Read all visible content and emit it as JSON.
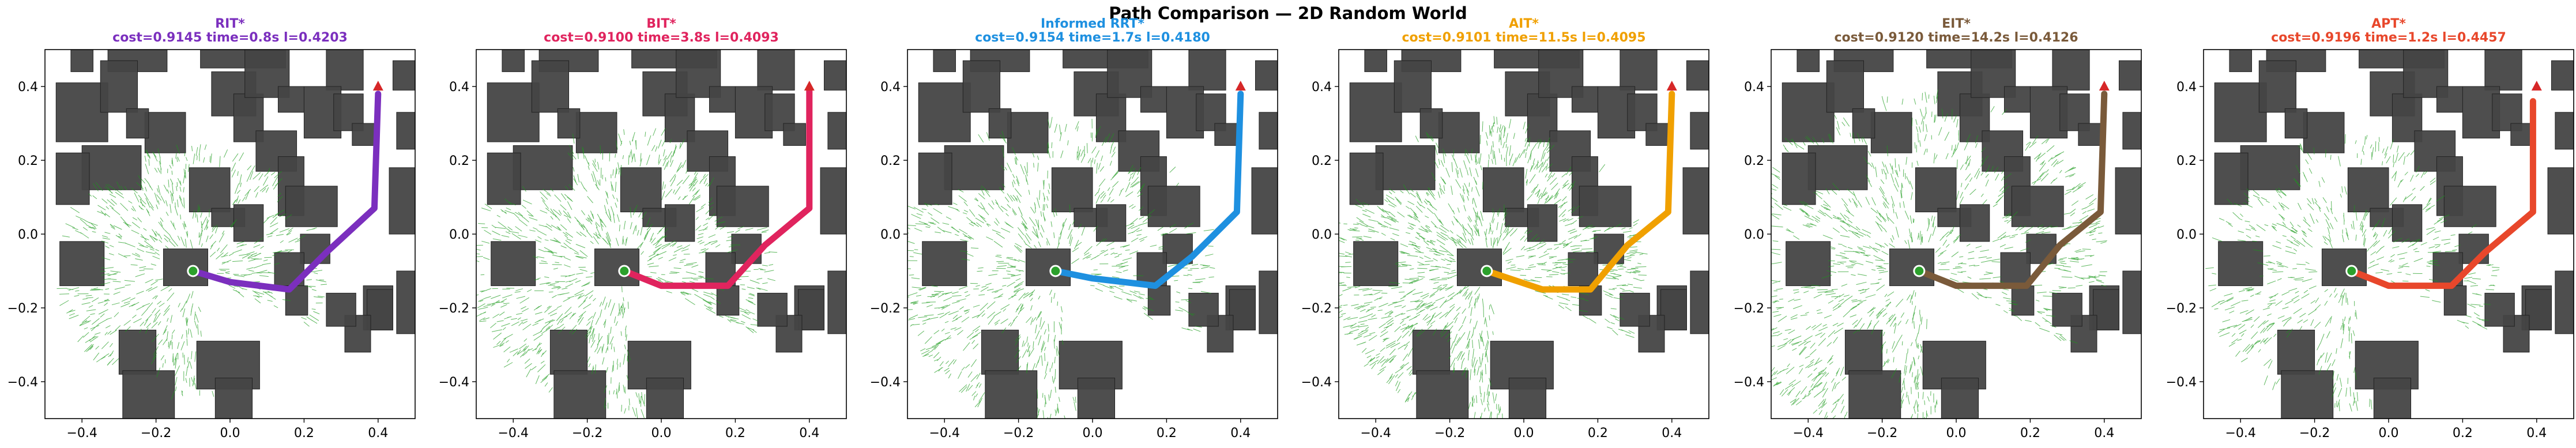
{
  "figure": {
    "title": "Path Comparison — 2D Random World"
  },
  "colors": {
    "tree": "#1a9a1a",
    "obstacle": "#454545",
    "start": "#2ca02c",
    "goal": "#d62728"
  },
  "chart_data": [
    {
      "type": "line",
      "planner": "RIT*",
      "title_name": "RIT*",
      "title_stats": "cost=0.9145  time=0.8s  l=0.4203",
      "color": "#7b2fbe",
      "xlim": [
        -0.5,
        0.5
      ],
      "ylim": [
        -0.5,
        0.5
      ],
      "xticks": [
        "−0.4",
        "−0.2",
        "0.0",
        "0.2",
        "0.4"
      ],
      "yticks": [
        "0.4",
        "0.2",
        "0.0",
        "−0.2",
        "−0.4"
      ],
      "start": [
        -0.1,
        -0.1
      ],
      "goal": [
        0.4,
        0.4
      ],
      "tree_density": 0.55,
      "tree_extent": 0.35,
      "path": [
        [
          -0.1,
          -0.1
        ],
        [
          0.0,
          -0.13
        ],
        [
          0.16,
          -0.15
        ],
        [
          0.26,
          -0.05
        ],
        [
          0.39,
          0.07
        ],
        [
          0.4,
          0.38
        ]
      ]
    },
    {
      "type": "line",
      "planner": "BIT*",
      "title_name": "BIT*",
      "title_stats": "cost=0.9100  time=3.8s  l=0.4093",
      "color": "#e0245e",
      "xlim": [
        -0.5,
        0.5
      ],
      "ylim": [
        -0.5,
        0.5
      ],
      "xticks": [
        "−0.4",
        "−0.2",
        "0.0",
        "0.2",
        "0.4"
      ],
      "yticks": [
        "0.4",
        "0.2",
        "0.0",
        "−0.2",
        "−0.4"
      ],
      "start": [
        -0.1,
        -0.1
      ],
      "goal": [
        0.4,
        0.4
      ],
      "tree_density": 0.75,
      "tree_extent": 0.4,
      "path": [
        [
          -0.1,
          -0.1
        ],
        [
          0.0,
          -0.14
        ],
        [
          0.18,
          -0.14
        ],
        [
          0.28,
          -0.03
        ],
        [
          0.4,
          0.07
        ],
        [
          0.4,
          0.39
        ]
      ]
    },
    {
      "type": "line",
      "planner": "Informed RRT*",
      "title_name": "Informed RRT*",
      "title_stats": "cost=0.9154  time=1.7s  l=0.4180",
      "color": "#1e90e0",
      "xlim": [
        -0.5,
        0.5
      ],
      "ylim": [
        -0.5,
        0.5
      ],
      "xticks": [
        "−0.4",
        "−0.2",
        "0.0",
        "0.2",
        "0.4"
      ],
      "yticks": [
        "0.4",
        "0.2",
        "0.0",
        "−0.2",
        "−0.4"
      ],
      "start": [
        -0.1,
        -0.1
      ],
      "goal": [
        0.4,
        0.4
      ],
      "tree_density": 0.7,
      "tree_extent": 0.42,
      "path": [
        [
          -0.1,
          -0.1
        ],
        [
          0.0,
          -0.12
        ],
        [
          0.17,
          -0.14
        ],
        [
          0.27,
          -0.06
        ],
        [
          0.39,
          0.06
        ],
        [
          0.4,
          0.38
        ]
      ]
    },
    {
      "type": "line",
      "planner": "AIT*",
      "title_name": "AIT*",
      "title_stats": "cost=0.9101  time=11.5s  l=0.4095",
      "color": "#f0a000",
      "xlim": [
        -0.5,
        0.5
      ],
      "ylim": [
        -0.5,
        0.5
      ],
      "xticks": [
        "−0.4",
        "−0.2",
        "0.0",
        "0.2",
        "0.4"
      ],
      "yticks": [
        "0.4",
        "0.2",
        "0.0",
        "−0.2",
        "−0.4"
      ],
      "start": [
        -0.1,
        -0.1
      ],
      "goal": [
        0.4,
        0.4
      ],
      "tree_density": 1.0,
      "tree_extent": 0.42,
      "path": [
        [
          -0.1,
          -0.1
        ],
        [
          0.05,
          -0.15
        ],
        [
          0.18,
          -0.15
        ],
        [
          0.28,
          -0.03
        ],
        [
          0.39,
          0.06
        ],
        [
          0.4,
          0.38
        ]
      ]
    },
    {
      "type": "line",
      "planner": "EIT*",
      "title_name": "EIT*",
      "title_stats": "cost=0.9120  time=14.2s  l=0.4126",
      "color": "#7a5a3a",
      "xlim": [
        -0.5,
        0.5
      ],
      "ylim": [
        -0.5,
        0.5
      ],
      "xticks": [
        "−0.4",
        "−0.2",
        "0.0",
        "0.2",
        "0.4"
      ],
      "yticks": [
        "0.4",
        "0.2",
        "0.0",
        "−0.2",
        "−0.4"
      ],
      "start": [
        -0.1,
        -0.1
      ],
      "goal": [
        0.4,
        0.4
      ],
      "tree_density": 1.0,
      "tree_extent": 0.5,
      "path": [
        [
          -0.1,
          -0.1
        ],
        [
          0.0,
          -0.14
        ],
        [
          0.19,
          -0.14
        ],
        [
          0.28,
          -0.03
        ],
        [
          0.39,
          0.06
        ],
        [
          0.4,
          0.38
        ]
      ]
    },
    {
      "type": "line",
      "planner": "APT*",
      "title_name": "APT*",
      "title_stats": "cost=0.9196  time=1.2s  l=0.4457",
      "color": "#e8472b",
      "xlim": [
        -0.5,
        0.5
      ],
      "ylim": [
        -0.5,
        0.5
      ],
      "xticks": [
        "−0.4",
        "−0.2",
        "0.0",
        "0.2",
        "0.4"
      ],
      "yticks": [
        "0.4",
        "0.2",
        "0.0",
        "−0.2",
        "−0.4"
      ],
      "start": [
        -0.1,
        -0.1
      ],
      "goal": [
        0.4,
        0.4
      ],
      "tree_density": 0.45,
      "tree_extent": 0.38,
      "path": [
        [
          -0.1,
          -0.1
        ],
        [
          0.0,
          -0.14
        ],
        [
          0.17,
          -0.14
        ],
        [
          0.26,
          -0.05
        ],
        [
          0.39,
          0.06
        ],
        [
          0.39,
          0.36
        ]
      ]
    }
  ]
}
